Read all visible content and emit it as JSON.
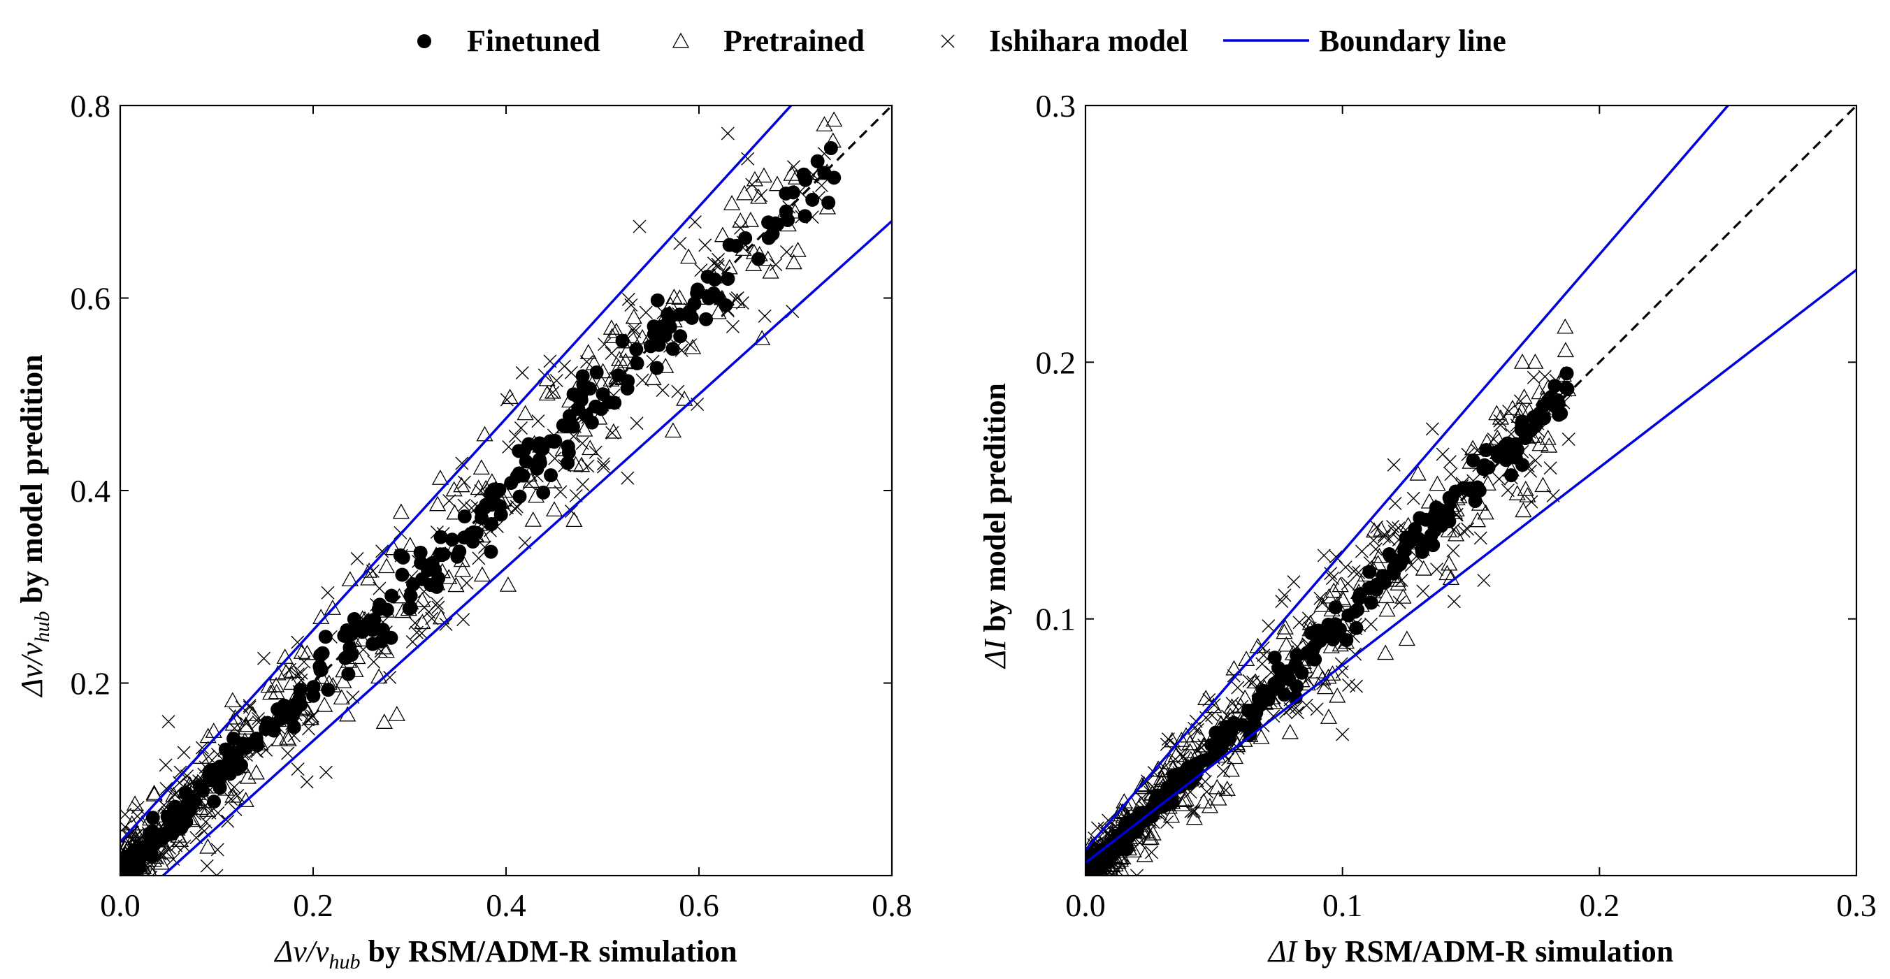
{
  "legend": {
    "placement": "top-center",
    "entries": [
      {
        "label": "Finetuned",
        "marker": "filled-circle",
        "color": "#000000"
      },
      {
        "label": "Pretrained",
        "marker": "open-triangle",
        "color": "#000000"
      },
      {
        "label": "Ishihara model",
        "marker": "x-cross",
        "color": "#000000"
      },
      {
        "label": "Boundary line",
        "marker": "line",
        "color": "#0000dd"
      }
    ]
  },
  "chart_data": [
    {
      "type": "scatter",
      "xlabel_math": "Δv/v",
      "xlabel_sub": "hub",
      "xlabel_text": " by RSM/ADM-R simulation",
      "ylabel_math": "Δv/v",
      "ylabel_sub": "hub",
      "ylabel_text": " by model predition",
      "xlim": [
        0.0,
        0.8
      ],
      "ylim": [
        0.0,
        0.8
      ],
      "xticks": [
        "0.0",
        "0.2",
        "0.4",
        "0.6",
        "0.8"
      ],
      "yticks": [
        "0.2",
        "0.4",
        "0.6",
        "0.8"
      ],
      "ytick_values": [
        0.2,
        0.4,
        0.6,
        0.8
      ],
      "xtick_values": [
        0.0,
        0.2,
        0.4,
        0.6,
        0.8
      ],
      "identity_line": {
        "style": "dashed",
        "color": "#000000"
      },
      "boundary_lines": [
        {
          "slope": 1.1,
          "intercept": 0.035
        },
        {
          "slope": 0.9,
          "intercept": -0.04
        }
      ],
      "series": [
        {
          "key": "finetuned",
          "marker": "filled-circle",
          "spread": 0.012,
          "n": 300,
          "x_range": [
            0.005,
            0.74
          ],
          "extra_points": [
            [
              0.73,
              0.73
            ],
            [
              0.74,
              0.725
            ],
            [
              0.63,
              0.62
            ],
            [
              0.62,
              0.6
            ],
            [
              0.57,
              0.58
            ],
            [
              0.57,
              0.57
            ],
            [
              0.55,
              0.55
            ],
            [
              0.48,
              0.51
            ],
            [
              0.47,
              0.5
            ]
          ]
        },
        {
          "key": "pretrained",
          "marker": "open-triangle",
          "spread": 0.03,
          "n": 300,
          "x_range": [
            0.005,
            0.74
          ],
          "extra_points": [
            [
              0.73,
              0.78
            ],
            [
              0.74,
              0.785
            ],
            [
              0.58,
              0.6
            ],
            [
              0.55,
              0.56
            ],
            [
              0.51,
              0.56
            ],
            [
              0.53,
              0.56
            ],
            [
              0.62,
              0.585
            ],
            [
              0.42,
              0.48
            ],
            [
              0.45,
              0.38
            ],
            [
              0.6,
              0.6
            ]
          ]
        },
        {
          "key": "ishihara",
          "marker": "x-cross",
          "spread": 0.035,
          "n": 300,
          "x_range": [
            0.005,
            0.73
          ],
          "extra_points": [
            [
              0.73,
              0.75
            ],
            [
              0.64,
              0.6
            ],
            [
              0.62,
              0.64
            ],
            [
              0.57,
              0.55
            ],
            [
              0.51,
              0.46
            ],
            [
              0.44,
              0.52
            ],
            [
              0.1,
              0.0
            ],
            [
              0.05,
              0.16
            ],
            [
              0.09,
              0.01
            ]
          ]
        }
      ]
    },
    {
      "type": "scatter",
      "xlabel_math": "ΔI",
      "xlabel_sub": "",
      "xlabel_text": " by RSM/ADM-R simulation",
      "ylabel_math": "ΔI",
      "ylabel_sub": "",
      "ylabel_text": " by model predition",
      "xlim": [
        0.0,
        0.3
      ],
      "ylim": [
        0.0,
        0.3
      ],
      "xticks": [
        "0.0",
        "0.1",
        "0.2",
        "0.3"
      ],
      "yticks": [
        "0.1",
        "0.2",
        "0.3"
      ],
      "ytick_values": [
        0.1,
        0.2,
        0.3
      ],
      "xtick_values": [
        0.0,
        0.1,
        0.2,
        0.3
      ],
      "identity_line": {
        "style": "dashed",
        "color": "#000000"
      },
      "boundary_lines": [
        {
          "slope": 1.16,
          "intercept": 0.01
        },
        {
          "slope": 0.77,
          "intercept": 0.005
        }
      ],
      "series": [
        {
          "key": "finetuned",
          "marker": "filled-circle",
          "spread": 0.003,
          "n": 320,
          "x_range": [
            0.002,
            0.188
          ],
          "extra_points": [
            [
              0.187,
              0.19
            ],
            [
              0.185,
              0.18
            ],
            [
              0.175,
              0.175
            ],
            [
              0.17,
              0.16
            ],
            [
              0.16,
              0.165
            ],
            [
              0.15,
              0.15
            ],
            [
              0.18,
              0.185
            ]
          ]
        },
        {
          "key": "pretrained",
          "marker": "open-triangle",
          "spread": 0.009,
          "n": 300,
          "x_range": [
            0.002,
            0.188
          ],
          "extra_points": [
            [
              0.175,
              0.2
            ],
            [
              0.17,
              0.2
            ],
            [
              0.186,
              0.195
            ],
            [
              0.172,
              0.148
            ],
            [
              0.178,
              0.152
            ],
            [
              0.18,
              0.19
            ],
            [
              0.16,
              0.18
            ]
          ]
        },
        {
          "key": "ishihara",
          "marker": "x-cross",
          "spread": 0.01,
          "n": 300,
          "x_range": [
            0.002,
            0.188
          ],
          "extra_points": [
            [
              0.188,
              0.17
            ],
            [
              0.182,
              0.148
            ],
            [
              0.135,
              0.174
            ],
            [
              0.1,
              0.055
            ],
            [
              0.155,
              0.115
            ],
            [
              0.12,
              0.16
            ],
            [
              0.02,
              0.0
            ]
          ]
        }
      ]
    }
  ]
}
